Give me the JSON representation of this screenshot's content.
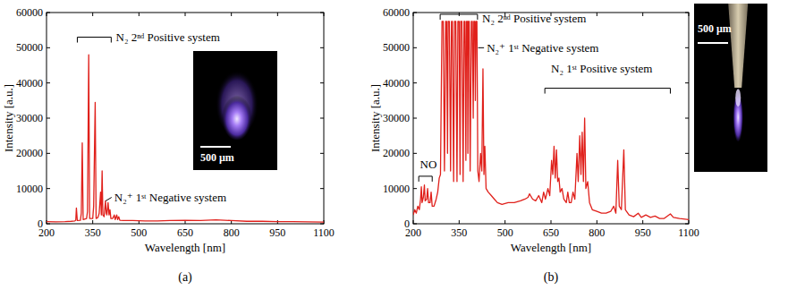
{
  "chart_data": [
    {
      "type": "line",
      "panel_label": "(a)",
      "x_label": "Wavelength [nm]",
      "y_label": "Intensity [a.u.]",
      "xlim": [
        200,
        1100
      ],
      "xticks": [
        200,
        350,
        500,
        650,
        800,
        950,
        1100
      ],
      "ylim": [
        0,
        60000
      ],
      "yticks": [
        0,
        10000,
        20000,
        30000,
        40000,
        50000,
        60000
      ],
      "grid": false,
      "color": "#e0201b",
      "x": [
        200,
        230,
        260,
        280,
        292,
        295,
        297,
        300,
        310,
        313,
        316,
        319,
        330,
        333,
        337,
        340,
        350,
        353,
        358,
        361,
        367,
        371,
        375.5,
        378,
        380.5,
        383,
        387,
        391.4,
        394,
        396,
        399.8,
        403,
        406,
        409,
        415,
        420,
        423,
        428,
        431,
        434.5,
        438,
        450,
        480,
        520,
        560,
        600,
        650,
        700,
        750,
        800,
        850,
        900,
        950,
        1000,
        1050,
        1100
      ],
      "values": [
        600,
        550,
        600,
        700,
        800,
        1000,
        4500,
        900,
        1000,
        3000,
        23000,
        1200,
        1500,
        3500,
        48000,
        1500,
        1500,
        5000,
        34500,
        1500,
        1800,
        3000,
        9000,
        2500,
        15000,
        2500,
        2000,
        6500,
        3000,
        2500,
        6000,
        2500,
        4000,
        1500,
        1500,
        2500,
        1200,
        2500,
        1200,
        2000,
        1000,
        900,
        900,
        800,
        800,
        900,
        1000,
        900,
        1100,
        900,
        700,
        700,
        600,
        600,
        550,
        500
      ],
      "annotations": [
        {
          "text": "N₂ 2ⁿᵈ Positive system",
          "x": 425,
          "y": 53000,
          "bracket": [
            300,
            410
          ],
          "bracket_y": 53000
        },
        {
          "text": "N₂⁺ 1ˢᵗ Negative system",
          "x": 420,
          "y": 7500,
          "pointer": [
            392,
            6500
          ]
        }
      ],
      "inset": {
        "scale_bar": "500 μm"
      }
    },
    {
      "type": "line",
      "panel_label": "(b)",
      "x_label": "Wavelength [nm]",
      "y_label": "Intensity [a.u.]",
      "xlim": [
        200,
        1100
      ],
      "xticks": [
        200,
        350,
        500,
        650,
        800,
        950,
        1100
      ],
      "ylim": [
        0,
        60000
      ],
      "yticks": [
        0,
        10000,
        20000,
        30000,
        40000,
        50000,
        60000
      ],
      "grid": false,
      "color": "#e0201b",
      "x": [
        200,
        205,
        210,
        215,
        220,
        224,
        226.5,
        229,
        233,
        236.5,
        239,
        244,
        247,
        250,
        255,
        258.5,
        262,
        268,
        275,
        280,
        285,
        289,
        294,
        298,
        302,
        306,
        309,
        312,
        314,
        318,
        322,
        325,
        328,
        332,
        335,
        339,
        343,
        346,
        350,
        353,
        355,
        359,
        363,
        366,
        369,
        372,
        374,
        377,
        378.5,
        380,
        383,
        386,
        390,
        393,
        396,
        398,
        401,
        403,
        405,
        408,
        411,
        415,
        420,
        424,
        427.8,
        431,
        434,
        438,
        445,
        455,
        465,
        475,
        490,
        510,
        530,
        550,
        565,
        575,
        580,
        590,
        600,
        610,
        620,
        626,
        632,
        640,
        646,
        652,
        656,
        660,
        664,
        668,
        672,
        676,
        680,
        686,
        692,
        700,
        705,
        710,
        716,
        722,
        728,
        735,
        739,
        744,
        748,
        752,
        756,
        760,
        764,
        770,
        776,
        785,
        800,
        815,
        830,
        845,
        855,
        862,
        868,
        873,
        880,
        888,
        893,
        905,
        920,
        935,
        945,
        960,
        975,
        990,
        1005,
        1020,
        1040,
        1050,
        1070,
        1100
      ],
      "values": [
        2500,
        4000,
        3000,
        5000,
        4000,
        7000,
        10500,
        6000,
        7500,
        11000,
        6500,
        7000,
        10000,
        6000,
        6000,
        9000,
        5000,
        5000,
        7000,
        9000,
        13000,
        14000,
        57500,
        57500,
        15000,
        57500,
        57500,
        20000,
        57500,
        57500,
        15000,
        57500,
        57500,
        12000,
        57500,
        57500,
        12000,
        57500,
        57500,
        14000,
        57500,
        57500,
        12000,
        57500,
        57500,
        18000,
        57500,
        57500,
        20000,
        57500,
        57500,
        15000,
        57500,
        57500,
        30000,
        57500,
        57500,
        35000,
        57500,
        57500,
        15000,
        12000,
        20000,
        15000,
        44000,
        14000,
        22000,
        10000,
        9000,
        8000,
        7000,
        6000,
        5500,
        6000,
        6000,
        6500,
        7000,
        7500,
        8500,
        7000,
        6500,
        8000,
        6000,
        9000,
        7000,
        10000,
        8000,
        18000,
        14000,
        22000,
        13000,
        21000,
        12000,
        13000,
        9000,
        10000,
        7000,
        6000,
        9000,
        6000,
        6000,
        9000,
        7000,
        20000,
        12000,
        25000,
        14000,
        26000,
        12000,
        30000,
        10000,
        12000,
        6000,
        4000,
        3500,
        3000,
        3000,
        3500,
        5000,
        3000,
        18000,
        5000,
        4000,
        21000,
        4000,
        2500,
        2000,
        3000,
        1800,
        2500,
        1800,
        2200,
        1500,
        1500,
        2800,
        1800,
        1500,
        1200
      ],
      "annotations": [
        {
          "text": "NO",
          "x": 222,
          "y": 17000,
          "bracket": [
            218,
            262
          ],
          "bracket_y": 13500
        },
        {
          "text": "N₂ 2ⁿᵈ Positive system",
          "x": 425,
          "y": 58300,
          "bracket": [
            288,
            410
          ],
          "bracket_y": 59500
        },
        {
          "text": "N₂⁺ 1ˢᵗ Negative system",
          "x": 440,
          "y": 50000,
          "pointer": [
            412,
            50000
          ]
        },
        {
          "text": "N₂ 1ˢᵗ Positive system",
          "x": 650,
          "y": 44000,
          "bracket": [
            630,
            1040
          ],
          "bracket_y": 38500
        }
      ],
      "inset": {
        "scale_bar": "500 μm"
      }
    }
  ]
}
